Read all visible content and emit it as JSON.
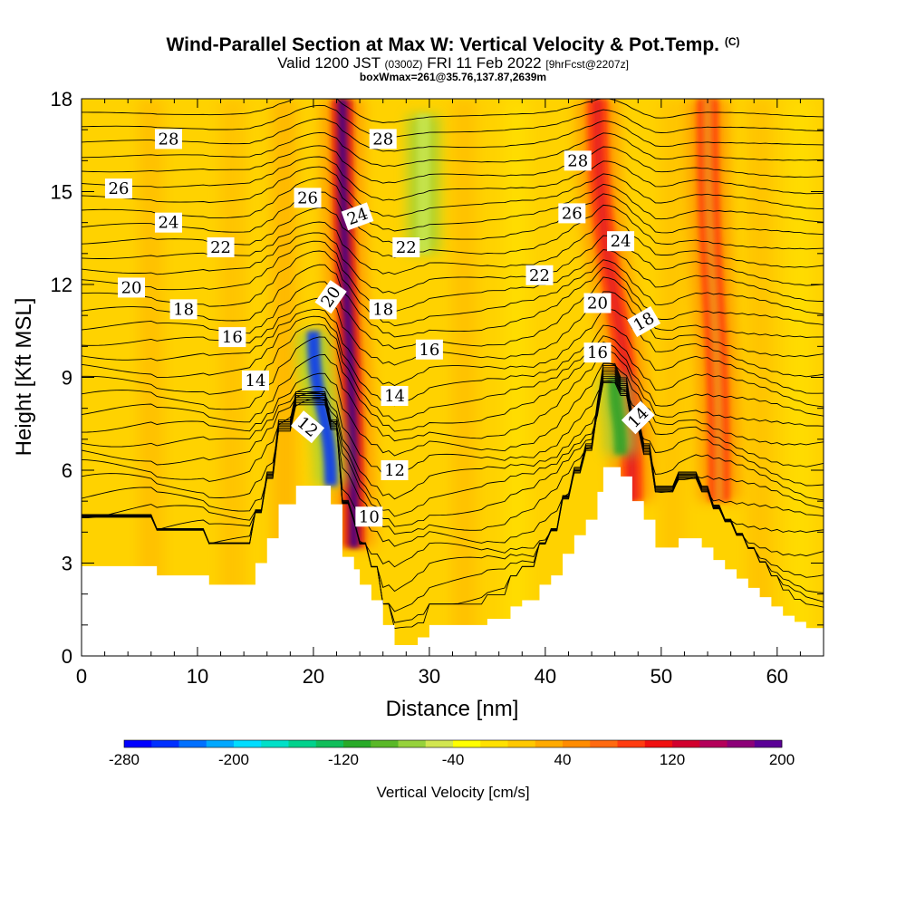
{
  "title": {
    "main": "Wind-Parallel Section at Max W: Vertical Velocity & Pot.Temp.",
    "copyright": "(C)",
    "valid_prefix": "Valid 1200 JST",
    "valid_utc": "(0300Z)",
    "valid_date": "FRI 11 Feb 2022",
    "forecast_info": "[9hrFcst@2207z]",
    "box_info": "boxWmax=261@35.76,137.87,2639m"
  },
  "chart_data": {
    "type": "heatmap",
    "xlabel": "Distance [nm]",
    "ylabel": "Height [Kft MSL]",
    "xlim": [
      0,
      64
    ],
    "ylim": [
      0,
      18
    ],
    "x_ticks": [
      "0",
      "10",
      "20",
      "30",
      "40",
      "50",
      "60"
    ],
    "y_ticks": [
      "0",
      "3",
      "6",
      "9",
      "12",
      "15",
      "18"
    ],
    "x_tick_values": [
      0,
      10,
      20,
      30,
      40,
      50,
      60
    ],
    "y_tick_values": [
      0,
      3,
      6,
      9,
      12,
      15,
      18
    ],
    "background_color": "#ffd200",
    "updrafts": [
      {
        "x_base": 23.5,
        "z_base": 3.5,
        "x_top": 22.5,
        "z_top": 18,
        "peak_cm_s": 200,
        "color": "#4b0080"
      },
      {
        "x_base": 47.5,
        "z_base": 5.0,
        "x_top": 44.5,
        "z_top": 18,
        "peak_cm_s": 110,
        "color": "#e62020"
      },
      {
        "x_base": 55.0,
        "z_base": 5.0,
        "x_top": 54.0,
        "z_top": 18,
        "peak_cm_s": 60,
        "color": "#f39018"
      }
    ],
    "downdrafts": [
      {
        "x_base": 21.5,
        "z_base": 5.5,
        "x_top": 20.0,
        "z_top": 10.5,
        "peak_cm_s": -280,
        "color": "#0032ff"
      },
      {
        "x_base": 46.5,
        "z_base": 6.5,
        "x_top": 46.0,
        "z_top": 9.0,
        "peak_cm_s": -120,
        "color": "#2aa02a"
      },
      {
        "x_base": 29.5,
        "z_base": 13.0,
        "x_top": 29.5,
        "z_top": 17.5,
        "peak_cm_s": -40,
        "color": "#c8e650"
      }
    ],
    "terrain_kft": [
      [
        0,
        2.9
      ],
      [
        6.5,
        2.9
      ],
      [
        6.5,
        2.6
      ],
      [
        11,
        2.6
      ],
      [
        11,
        2.3
      ],
      [
        15,
        2.3
      ],
      [
        15,
        3.0
      ],
      [
        16,
        3.0
      ],
      [
        16,
        3.8
      ],
      [
        17,
        3.8
      ],
      [
        17,
        4.9
      ],
      [
        18.5,
        4.9
      ],
      [
        18.5,
        5.5
      ],
      [
        21.5,
        5.5
      ],
      [
        21.5,
        4.9
      ],
      [
        22.5,
        4.9
      ],
      [
        22.5,
        3.2
      ],
      [
        23.5,
        3.2
      ],
      [
        23.5,
        2.8
      ],
      [
        24,
        2.8
      ],
      [
        24,
        2.3
      ],
      [
        25,
        2.3
      ],
      [
        25,
        1.8
      ],
      [
        26,
        1.8
      ],
      [
        26,
        1.0
      ],
      [
        27,
        1.0
      ],
      [
        27,
        0.35
      ],
      [
        29,
        0.35
      ],
      [
        29,
        0.6
      ],
      [
        30,
        0.6
      ],
      [
        30,
        1.0
      ],
      [
        35,
        1.0
      ],
      [
        35,
        1.2
      ],
      [
        37,
        1.2
      ],
      [
        37,
        1.6
      ],
      [
        38,
        1.6
      ],
      [
        38,
        1.8
      ],
      [
        39.5,
        1.8
      ],
      [
        39.5,
        2.3
      ],
      [
        40.5,
        2.3
      ],
      [
        40.5,
        2.6
      ],
      [
        41.5,
        2.6
      ],
      [
        41.5,
        3.3
      ],
      [
        42.5,
        3.3
      ],
      [
        42.5,
        3.9
      ],
      [
        43.5,
        3.9
      ],
      [
        43.5,
        4.4
      ],
      [
        44.5,
        4.4
      ],
      [
        44.5,
        5.3
      ],
      [
        45,
        5.3
      ],
      [
        45,
        6.1
      ],
      [
        46.5,
        6.1
      ],
      [
        46.5,
        5.8
      ],
      [
        47.5,
        5.8
      ],
      [
        47.5,
        5.0
      ],
      [
        48.5,
        5.0
      ],
      [
        48.5,
        4.4
      ],
      [
        49.5,
        4.4
      ],
      [
        49.5,
        3.5
      ],
      [
        51.5,
        3.5
      ],
      [
        51.5,
        3.8
      ],
      [
        53.5,
        3.8
      ],
      [
        53.5,
        3.5
      ],
      [
        54.5,
        3.5
      ],
      [
        54.5,
        3.1
      ],
      [
        55.5,
        3.1
      ],
      [
        55.5,
        2.8
      ],
      [
        56.5,
        2.8
      ],
      [
        56.5,
        2.5
      ],
      [
        57.5,
        2.5
      ],
      [
        57.5,
        2.2
      ],
      [
        58.5,
        2.2
      ],
      [
        58.5,
        1.9
      ],
      [
        59.5,
        1.9
      ],
      [
        59.5,
        1.6
      ],
      [
        60.5,
        1.6
      ],
      [
        60.5,
        1.3
      ],
      [
        61.5,
        1.3
      ],
      [
        61.5,
        1.1
      ],
      [
        62.5,
        1.1
      ],
      [
        62.5,
        0.9
      ],
      [
        64,
        0.9
      ]
    ],
    "contour_levels": [
      "10",
      "12",
      "14",
      "16",
      "18",
      "20",
      "22",
      "24",
      "26",
      "28"
    ],
    "contour_labels": [
      {
        "text": "28",
        "x": 7.5,
        "z": 16.7,
        "rot": 0
      },
      {
        "text": "26",
        "x": 3.2,
        "z": 15.1,
        "rot": 0
      },
      {
        "text": "24",
        "x": 7.5,
        "z": 14.0,
        "rot": 0
      },
      {
        "text": "22",
        "x": 12.0,
        "z": 13.2,
        "rot": 0
      },
      {
        "text": "20",
        "x": 4.3,
        "z": 11.9,
        "rot": 0
      },
      {
        "text": "18",
        "x": 8.8,
        "z": 11.2,
        "rot": 0
      },
      {
        "text": "16",
        "x": 13.0,
        "z": 10.3,
        "rot": 0
      },
      {
        "text": "14",
        "x": 15.0,
        "z": 8.9,
        "rot": 0
      },
      {
        "text": "12",
        "x": 19.5,
        "z": 7.4,
        "rot": 40
      },
      {
        "text": "26",
        "x": 19.5,
        "z": 14.8,
        "rot": 0
      },
      {
        "text": "24",
        "x": 23.8,
        "z": 14.2,
        "rot": -20
      },
      {
        "text": "20",
        "x": 21.5,
        "z": 11.6,
        "rot": -55
      },
      {
        "text": "28",
        "x": 26.0,
        "z": 16.7,
        "rot": 0
      },
      {
        "text": "22",
        "x": 28.0,
        "z": 13.2,
        "rot": 0
      },
      {
        "text": "18",
        "x": 26.0,
        "z": 11.2,
        "rot": 0
      },
      {
        "text": "16",
        "x": 30.0,
        "z": 9.9,
        "rot": 0
      },
      {
        "text": "14",
        "x": 27.0,
        "z": 8.4,
        "rot": 0
      },
      {
        "text": "12",
        "x": 27.0,
        "z": 6.0,
        "rot": 0
      },
      {
        "text": "10",
        "x": 24.8,
        "z": 4.5,
        "rot": 0
      },
      {
        "text": "28",
        "x": 42.8,
        "z": 16.0,
        "rot": 0
      },
      {
        "text": "26",
        "x": 42.3,
        "z": 14.3,
        "rot": 0
      },
      {
        "text": "24",
        "x": 46.5,
        "z": 13.4,
        "rot": 0
      },
      {
        "text": "22",
        "x": 39.5,
        "z": 12.3,
        "rot": 0
      },
      {
        "text": "20",
        "x": 44.5,
        "z": 11.4,
        "rot": 0
      },
      {
        "text": "18",
        "x": 48.5,
        "z": 10.8,
        "rot": -30
      },
      {
        "text": "16",
        "x": 44.5,
        "z": 9.8,
        "rot": 0
      },
      {
        "text": "14",
        "x": 48.0,
        "z": 7.7,
        "rot": -45
      }
    ]
  },
  "colorbar": {
    "colors": [
      "#0000ff",
      "#0030ff",
      "#0070ff",
      "#00a8ff",
      "#00ddff",
      "#00e0c8",
      "#00d28c",
      "#10be5a",
      "#28aa28",
      "#5ab828",
      "#96d23c",
      "#d2e650",
      "#ffff00",
      "#ffe100",
      "#ffc800",
      "#ffaa00",
      "#ff8c00",
      "#ff6a10",
      "#ff3c10",
      "#f01010",
      "#d2002d",
      "#b4005a",
      "#8c0078",
      "#5a0096"
    ],
    "tick_labels": [
      "-280",
      "-200",
      "-120",
      "-40",
      "40",
      "120",
      "200"
    ],
    "label": "Vertical Velocity [cm/s]"
  }
}
